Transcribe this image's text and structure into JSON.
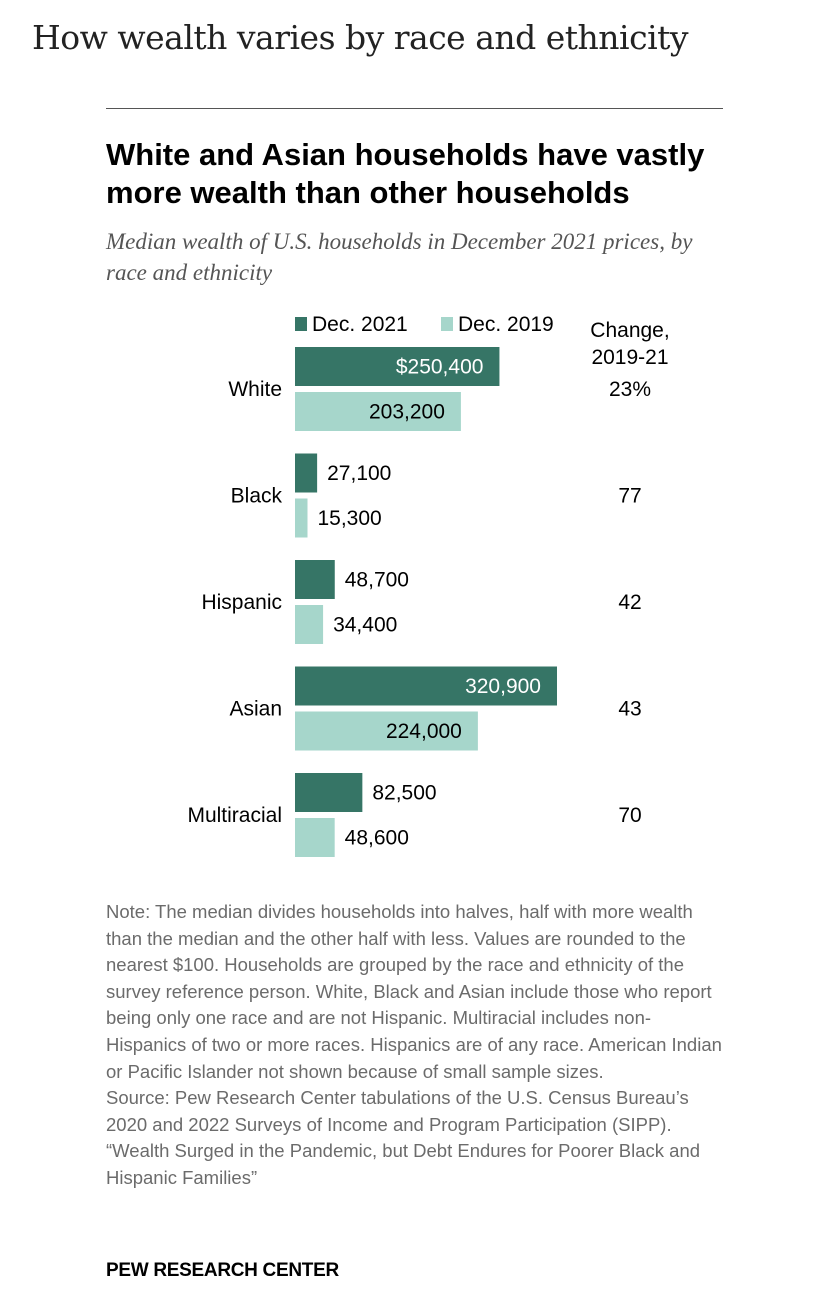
{
  "page_heading": "How wealth varies by race and ethnicity",
  "colors": {
    "dec2021": "#367566",
    "dec2019": "#a6d6cb"
  },
  "chart_data": {
    "type": "bar",
    "orientation": "horizontal",
    "title": "White and Asian households have vastly more wealth than other households",
    "subtitle": "Median wealth of U.S. households in December 2021 prices, by race and ethnicity",
    "categories": [
      "White",
      "Black",
      "Hispanic",
      "Asian",
      "Multiracial"
    ],
    "series": [
      {
        "name": "Dec. 2021",
        "values": [
          250400,
          27100,
          48700,
          320900,
          82500
        ],
        "labels": [
          "$250,400",
          "27,100",
          "48,700",
          "320,900",
          "82,500"
        ]
      },
      {
        "name": "Dec. 2019",
        "values": [
          203200,
          15300,
          34400,
          224000,
          48600
        ],
        "labels": [
          "203,200",
          "15,300",
          "34,400",
          "224,000",
          "48,600"
        ]
      }
    ],
    "change_header": [
      "Change,",
      "2019-21"
    ],
    "change_labels": [
      "23%",
      "77",
      "42",
      "43",
      "70"
    ],
    "legend_position": "top",
    "grid": false,
    "xlim": [
      0,
      320900
    ]
  },
  "note": {
    "text": "Note: The median divides households into halves, half with more wealth than the median and the other half with less. Values are rounded to the nearest $100. Households are grouped by the race and ethnicity of the survey reference person. White, Black and Asian include those who report being only one race and are not Hispanic. Multiracial includes non-Hispanics of two or more races. Hispanics are of any race. American Indian or Pacific Islander not shown because of small sample sizes.",
    "source": "Source: Pew Research Center tabulations of the U.S. Census Bureau’s 2020 and 2022 Surveys of Income and Program Participation (SIPP).",
    "report_title": "“Wealth Surged in the Pandemic, but Debt Endures for Poorer Black and Hispanic Families”"
  },
  "brand": "PEW RESEARCH CENTER"
}
